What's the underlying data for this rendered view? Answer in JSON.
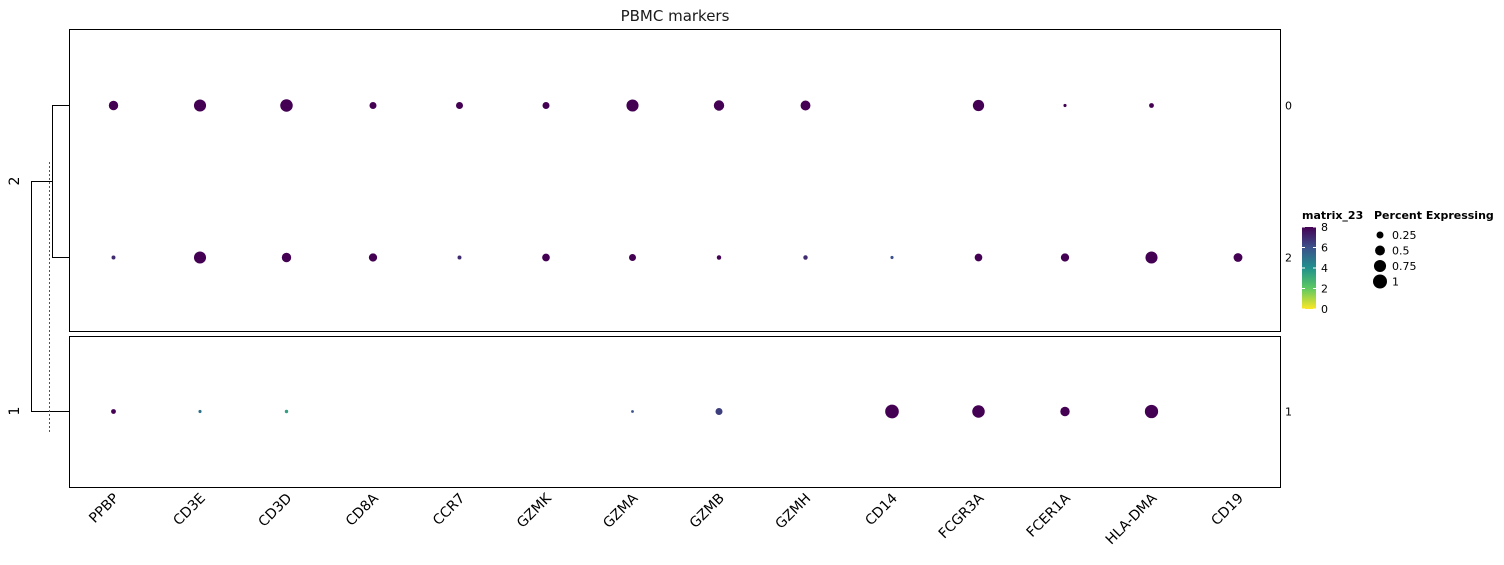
{
  "chart_data": {
    "type": "dotplot",
    "title": "PBMC markers",
    "genes": [
      "PPBP",
      "CD3E",
      "CD3D",
      "CD8A",
      "CCR7",
      "GZMK",
      "GZMA",
      "GZMB",
      "GZMH",
      "CD14",
      "FCGR3A",
      "FCER1A",
      "HLA-DMA",
      "CD19"
    ],
    "rows": [
      "0",
      "2",
      "1"
    ],
    "cluster_groups": [
      "2",
      "1"
    ],
    "color_legend": {
      "title": "matrix_23",
      "ticks": [
        8,
        6,
        4,
        2,
        0
      ],
      "range": [
        0,
        8
      ]
    },
    "size_legend": {
      "title": "Percent Expressing",
      "labels": [
        "0.25",
        "0.5",
        "0.75",
        "1"
      ],
      "values": [
        0.25,
        0.5,
        0.75,
        1
      ]
    },
    "pct": [
      [
        0.45,
        0.75,
        0.8,
        0.25,
        0.25,
        0.25,
        0.75,
        0.55,
        0.5,
        0,
        0.65,
        0.05,
        0.12,
        0
      ],
      [
        0.08,
        0.75,
        0.45,
        0.35,
        0.08,
        0.3,
        0.25,
        0.1,
        0.1,
        0.05,
        0.3,
        0.35,
        0.75,
        0.4
      ],
      [
        0.12,
        0.05,
        0.06,
        0,
        0,
        0,
        0.04,
        0.25,
        0,
        0.95,
        0.8,
        0.45,
        0.9,
        0
      ]
    ],
    "avg": [
      [
        8,
        8,
        8,
        8,
        8,
        8,
        8,
        8,
        8,
        0,
        8,
        8,
        8,
        0
      ],
      [
        7,
        8,
        8,
        8,
        7,
        8,
        8,
        8,
        7,
        6,
        8,
        8,
        8,
        8
      ],
      [
        8,
        5,
        3.5,
        0,
        0,
        0,
        6,
        6.5,
        0,
        8,
        8,
        8,
        8,
        0
      ]
    ]
  }
}
